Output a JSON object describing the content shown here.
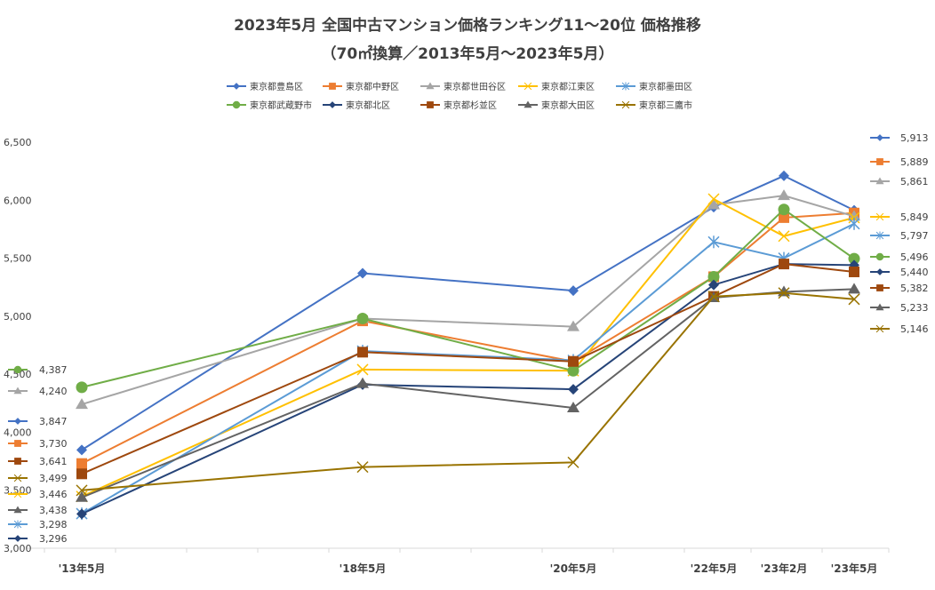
{
  "chart_data": {
    "type": "line",
    "title": "2023年5月 全国中古マンション価格ランキング11～20位 価格推移",
    "subtitle": "（70㎡換算／2013年5月～2023年5月）",
    "xlabel": "",
    "ylabel": "",
    "categories": [
      "'13年5月",
      "'18年5月",
      "'20年5月",
      "'22年5月",
      "'23年2月",
      "'23年5月"
    ],
    "ylim": [
      3000,
      6500
    ],
    "yticks": [
      "3,000",
      "3,500",
      "4,000",
      "4,500",
      "5,000",
      "5,500",
      "6,000",
      "6,500"
    ],
    "legend_position": "top",
    "grid": false,
    "series": [
      {
        "name": "東京都豊島区",
        "color": "#4472C4",
        "marker": "diamond",
        "values": [
          3847,
          5370,
          5220,
          5940,
          6210,
          5913
        ],
        "end_label": "5,913",
        "start_label": "3,847"
      },
      {
        "name": "東京都中野区",
        "color": "#ED7D31",
        "marker": "square",
        "values": [
          3730,
          4960,
          4610,
          5340,
          5850,
          5889
        ],
        "end_label": "5,889",
        "start_label": "3,730"
      },
      {
        "name": "東京都世田谷区",
        "color": "#A5A5A5",
        "marker": "triangle",
        "values": [
          4240,
          4980,
          4910,
          5960,
          6040,
          5861
        ],
        "end_label": "5,861",
        "start_label": "4,240"
      },
      {
        "name": "東京都江東区",
        "color": "#FFC000",
        "marker": "x",
        "values": [
          3446,
          4540,
          4530,
          6010,
          5690,
          5849
        ],
        "end_label": "5,849",
        "start_label": "3,446"
      },
      {
        "name": "東京都墨田区",
        "color": "#5B9BD5",
        "marker": "star",
        "values": [
          3298,
          4700,
          4620,
          5640,
          5500,
          5797
        ],
        "end_label": "5,797",
        "start_label": "3,298"
      },
      {
        "name": "東京都武蔵野市",
        "color": "#70AD47",
        "marker": "circle",
        "values": [
          4387,
          4980,
          4530,
          5340,
          5920,
          5496
        ],
        "end_label": "5,496",
        "start_label": "4,387"
      },
      {
        "name": "東京都北区",
        "color": "#264478",
        "marker": "diamond",
        "values": [
          3296,
          4410,
          4370,
          5270,
          5450,
          5440
        ],
        "end_label": "5,440",
        "start_label": "3,296"
      },
      {
        "name": "東京都杉並区",
        "color": "#9E480E",
        "marker": "square",
        "values": [
          3641,
          4690,
          4610,
          5170,
          5450,
          5382
        ],
        "end_label": "5,382",
        "start_label": "3,641"
      },
      {
        "name": "東京都大田区",
        "color": "#636363",
        "marker": "triangle",
        "values": [
          3438,
          4420,
          4210,
          5160,
          5210,
          5233
        ],
        "end_label": "5,233",
        "start_label": "3,438"
      },
      {
        "name": "東京都三鷹市",
        "color": "#997300",
        "marker": "x",
        "values": [
          3499,
          3700,
          3740,
          5170,
          5200,
          5146
        ],
        "end_label": "5,146",
        "start_label": "3,499"
      }
    ]
  }
}
